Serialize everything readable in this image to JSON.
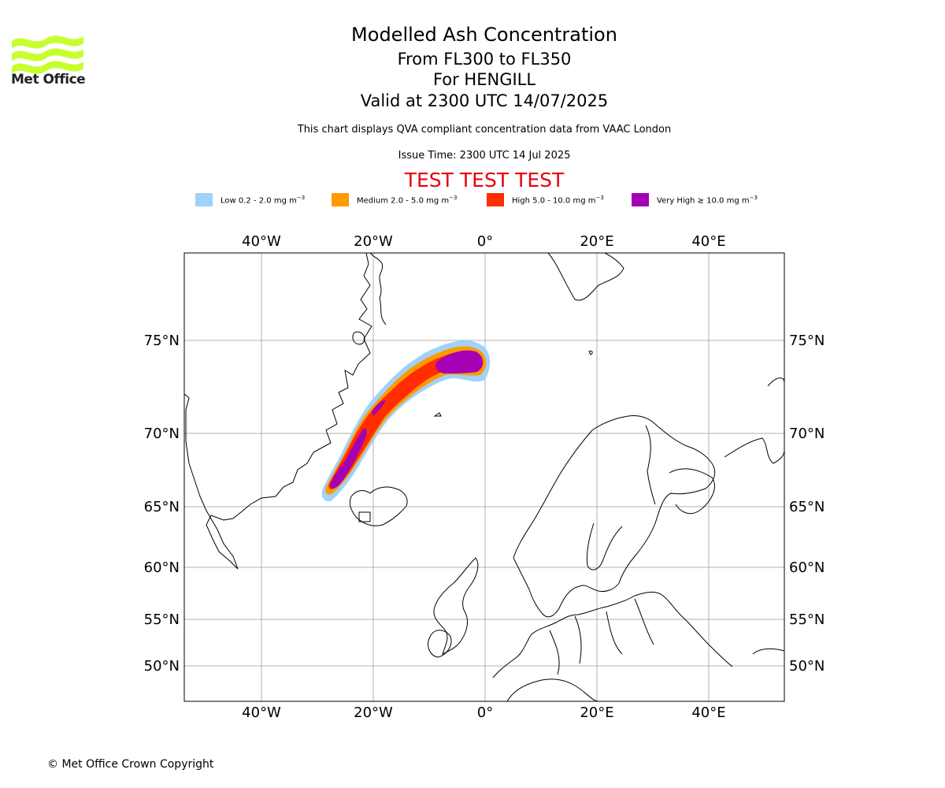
{
  "header": {
    "logo_text": "Met Office",
    "title": "Modelled Ash Concentration",
    "flight_levels": "From FL300 to FL350",
    "volcano": "For HENGILL",
    "valid_time": "Valid at 2300 UTC 14/07/2025",
    "description": "This chart displays QVA compliant concentration data from VAAC London",
    "issue_time": "Issue Time: 2300 UTC 14 Jul 2025",
    "test_banner": "TEST TEST TEST"
  },
  "legend": [
    {
      "label": "Low 0.2 - 2.0 mg m",
      "exp": "−3",
      "color": "#a0d2fa"
    },
    {
      "label": "Medium 2.0 - 5.0 mg m",
      "exp": "−3",
      "color": "#ff9a00"
    },
    {
      "label": "High 5.0 - 10.0 mg m",
      "exp": "−3",
      "color": "#ff2d00"
    },
    {
      "label": "Very High  ≥  10.0 mg m",
      "exp": "−3",
      "color": "#a500b4"
    }
  ],
  "map": {
    "lon_ticks": [
      "40°W",
      "20°W",
      "0°",
      "20°E",
      "40°E"
    ],
    "lat_ticks": [
      "75°N",
      "70°N",
      "65°N",
      "60°N",
      "55°N",
      "50°N"
    ],
    "lon_values": [
      -40,
      -20,
      0,
      20,
      40
    ],
    "lat_values": [
      75,
      70,
      65,
      60,
      55,
      50
    ],
    "gridlines": true,
    "ash_plume": {
      "source": "HENGILL",
      "path": [
        {
          "lon": -27.5,
          "lat": 66.2
        },
        {
          "lon": -25.0,
          "lat": 68.0
        },
        {
          "lon": -22.0,
          "lat": 70.0
        },
        {
          "lon": -18.5,
          "lat": 71.8
        },
        {
          "lon": -12.0,
          "lat": 73.2
        },
        {
          "lon": -6.0,
          "lat": 74.0
        },
        {
          "lon": -1.5,
          "lat": 73.8
        }
      ]
    }
  },
  "footer": {
    "copyright": "© Met Office Crown Copyright"
  }
}
